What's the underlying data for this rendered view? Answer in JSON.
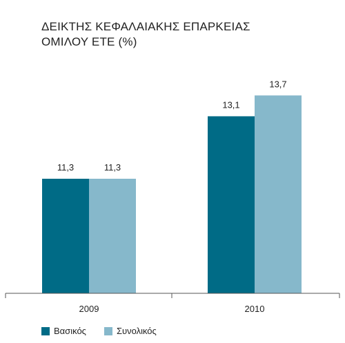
{
  "chart_data": {
    "type": "bar",
    "title_lines": [
      "ΔΕΙΚΤΗΣ ΚΕΦΑΛΑΙΑΚΗΣ ΕΠΑΡΚΕΙΑΣ",
      "ΟΜΙΛΟΥ ΕΤΕ (%)"
    ],
    "categories": [
      "2009",
      "2010"
    ],
    "series": [
      {
        "name": "Βασικός",
        "color": "#006b86",
        "values": [
          11.3,
          13.1
        ],
        "labels": [
          "11,3",
          "13,1"
        ]
      },
      {
        "name": "Συνολικός",
        "color": "#86b8cb",
        "values": [
          11.3,
          13.7
        ],
        "labels": [
          "11,3",
          "13,7"
        ]
      }
    ],
    "ylim": [
      8,
      16
    ],
    "grid": false,
    "legend_position": "bottom-left"
  }
}
